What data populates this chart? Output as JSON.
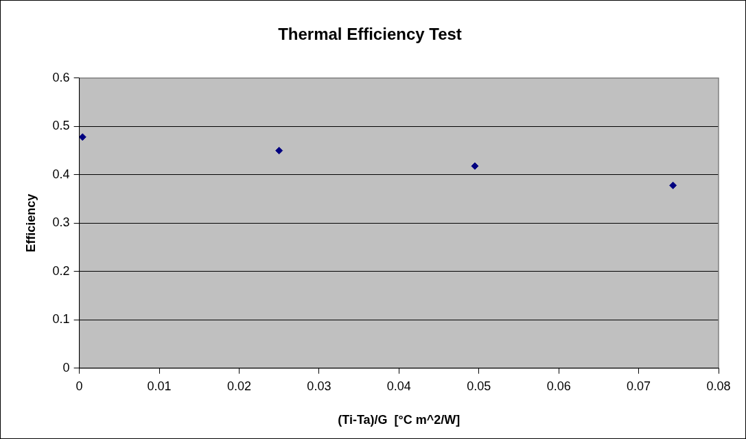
{
  "chart_data": {
    "type": "scatter",
    "title": "Thermal Efficiency Test",
    "xlabel": "(Ti-Ta)/G  [°C m^2/W]",
    "ylabel": "Efficiency",
    "x": [
      0.0004,
      0.025,
      0.0495,
      0.0743
    ],
    "series": [
      {
        "color": "#000080",
        "values": [
          0.478,
          0.45,
          0.418,
          0.378
        ]
      }
    ],
    "xlim": [
      0,
      0.08
    ],
    "xticks": [
      0,
      0.01,
      0.02,
      0.03,
      0.04,
      0.05,
      0.06,
      0.07,
      0.08
    ],
    "ylim": [
      0,
      0.6
    ],
    "yticks": [
      0,
      0.1,
      0.2,
      0.3,
      0.4,
      0.5,
      0.6
    ],
    "grid": "y",
    "legend": false,
    "marker": "diamond"
  }
}
